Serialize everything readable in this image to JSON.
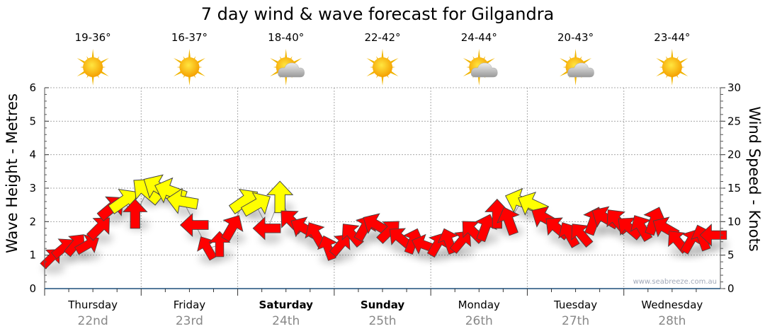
{
  "chart_data": {
    "type": "scatter",
    "title": "7 day wind & wave forecast for Gilgandra",
    "ylabel": "Wave Height - Metres",
    "y2label": "Wind Speed - Knots",
    "ylim": [
      0,
      6
    ],
    "y2lim": [
      0,
      30
    ],
    "yticks": [
      "0",
      "1",
      "2",
      "3",
      "4",
      "5",
      "6"
    ],
    "y2ticks": [
      "0",
      "5",
      "10",
      "15",
      "20",
      "25",
      "30"
    ],
    "grid": true,
    "watermark": "www.seabreeze.com.au",
    "days": [
      {
        "name": "Thursday",
        "date": "22nd",
        "temp": "19-36°",
        "icon": "sunny-icon",
        "bold": false
      },
      {
        "name": "Friday",
        "date": "23rd",
        "temp": "16-37°",
        "icon": "sunny-icon",
        "bold": false
      },
      {
        "name": "Saturday",
        "date": "24th",
        "temp": "18-40°",
        "icon": "partly-cloudy-icon",
        "bold": true
      },
      {
        "name": "Sunday",
        "date": "25th",
        "temp": "22-42°",
        "icon": "sunny-icon",
        "bold": true
      },
      {
        "name": "Monday",
        "date": "26th",
        "temp": "24-44°",
        "icon": "partly-cloudy-icon",
        "bold": false
      },
      {
        "name": "Tuesday",
        "date": "27th",
        "temp": "20-43°",
        "icon": "partly-cloudy-icon",
        "bold": false
      },
      {
        "name": "Wednesday",
        "date": "28th",
        "temp": "23-44°",
        "icon": "sunny-icon",
        "bold": false
      }
    ],
    "wind_interval_hours": 3,
    "wind_knots": [
      4.5,
      6,
      6.5,
      6.5,
      9,
      12,
      13,
      11,
      14.5,
      15,
      14.5,
      13,
      9.5,
      6,
      6.5,
      9,
      13,
      12.5,
      9,
      13.5,
      10,
      9,
      8,
      6,
      6.5,
      8,
      9,
      9.5,
      8.5,
      7.5,
      7,
      6.5,
      6.5,
      7,
      7,
      8.5,
      9,
      11,
      10,
      13,
      12.5,
      10.5,
      9,
      8,
      8,
      10,
      10.5,
      10,
      9,
      9,
      10,
      9,
      7,
      7,
      7.5,
      8
    ],
    "wind_arrow_direction_deg": [
      45,
      50,
      40,
      60,
      45,
      50,
      55,
      0,
      -50,
      -60,
      -70,
      -80,
      -90,
      -30,
      0,
      30,
      55,
      60,
      -90,
      0,
      -45,
      -60,
      -30,
      -20,
      40,
      -40,
      30,
      -60,
      45,
      -50,
      20,
      -70,
      30,
      -20,
      40,
      -45,
      20,
      0,
      -20,
      -70,
      -65,
      -60,
      -50,
      -30,
      -40,
      20,
      -60,
      -40,
      -50,
      -30,
      20,
      -60,
      -40,
      30,
      -20,
      -90
    ],
    "wind_arrow_colors": [
      "#ff0000",
      "#ff0000",
      "#ff0000",
      "#ff0000",
      "#ff0000",
      "#ff0000",
      "#ffff00",
      "#ff0000",
      "#ffff00",
      "#ffff00",
      "#ffff00",
      "#ffff00",
      "#ff0000",
      "#ff0000",
      "#ff0000",
      "#ff0000",
      "#ffff00",
      "#ffff00",
      "#ff0000",
      "#ffff00",
      "#ff0000",
      "#ff0000",
      "#ff0000",
      "#ff0000",
      "#ff0000",
      "#ff0000",
      "#ff0000",
      "#ff0000",
      "#ff0000",
      "#ff0000",
      "#ff0000",
      "#ff0000",
      "#ff0000",
      "#ff0000",
      "#ff0000",
      "#ff0000",
      "#ff0000",
      "#ff0000",
      "#ff0000",
      "#ffff00",
      "#ffff00",
      "#ff0000",
      "#ff0000",
      "#ff0000",
      "#ff0000",
      "#ff0000",
      "#ff0000",
      "#ff0000",
      "#ff0000",
      "#ff0000",
      "#ff0000",
      "#ff0000",
      "#ff0000",
      "#ff0000",
      "#ff0000",
      "#ff0000"
    ]
  }
}
